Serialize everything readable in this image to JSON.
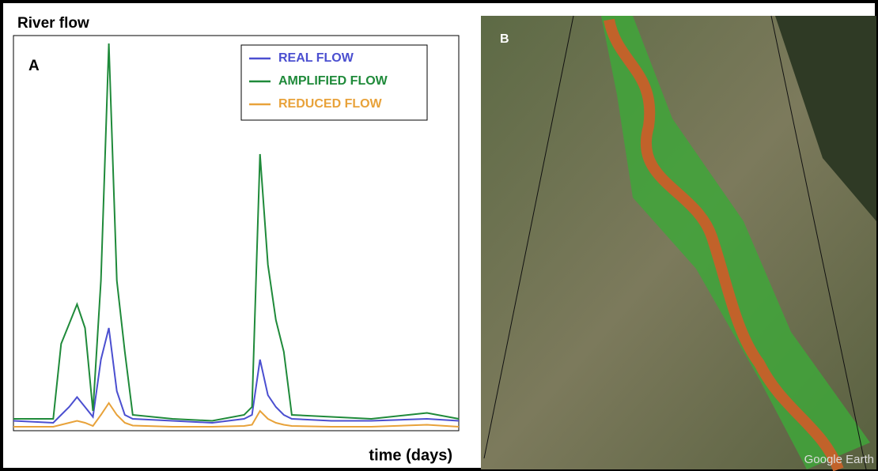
{
  "chart_data": {
    "type": "line",
    "title": "River flow",
    "panel_label": "A",
    "x_label": "time (days)",
    "x": [
      0,
      5,
      6,
      7,
      8,
      9,
      10,
      11,
      12,
      13,
      14,
      15,
      20,
      25,
      29,
      30,
      31,
      32,
      33,
      34,
      35,
      40,
      45,
      52,
      56
    ],
    "xlim": [
      0,
      56
    ],
    "ylim": [
      0,
      100
    ],
    "series": [
      {
        "name": "REAL FLOW",
        "color": "#4b4fd0",
        "values": [
          2.5,
          2,
          4,
          6,
          8.5,
          6,
          3.5,
          18,
          26,
          10,
          4,
          3,
          2.5,
          2,
          3,
          4,
          18,
          9,
          6,
          4,
          3,
          2.5,
          2.5,
          3,
          2.5
        ]
      },
      {
        "name": "AMPLIFIED FLOW",
        "color": "#1f8a3a",
        "values": [
          3,
          3,
          22,
          27,
          32,
          26,
          5,
          38,
          98,
          38,
          20,
          4,
          3,
          2.5,
          4,
          6,
          70,
          42,
          28,
          20,
          4,
          3.5,
          3,
          4.5,
          3
        ]
      },
      {
        "name": "REDUCED FLOW",
        "color": "#e8a23a",
        "values": [
          1,
          1,
          1.5,
          2,
          2.5,
          2,
          1.2,
          4,
          7,
          4,
          2,
          1.3,
          1,
          1,
          1.2,
          1.5,
          5,
          3,
          2,
          1.5,
          1.2,
          1,
          1,
          1.5,
          1
        ]
      }
    ]
  },
  "panel_b": {
    "label": "B",
    "watermark": "Google Earth"
  }
}
